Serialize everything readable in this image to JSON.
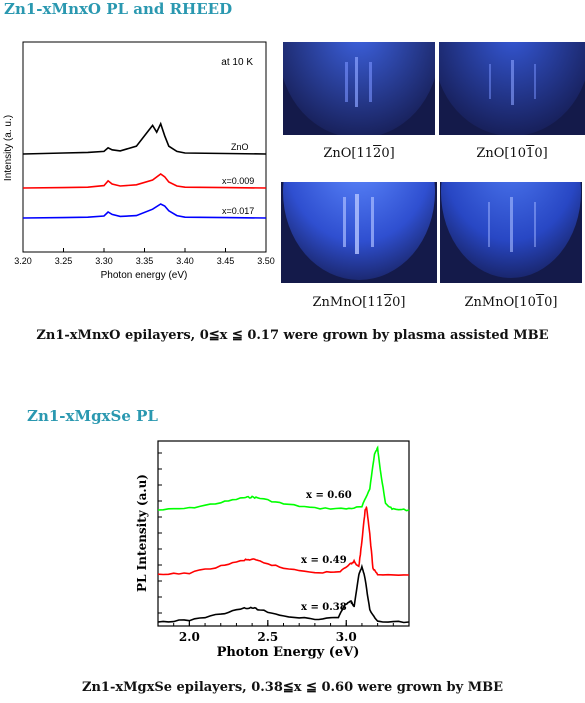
{
  "section1": {
    "title": "Zn1-xMnxO PL and RHEED",
    "caption": "Zn1-xMnxO epilayers, 0≦x ≦ 0.17 were grown by plasma assisted MBE"
  },
  "rheed": [
    {
      "label": "ZnO[11",
      "bar": "2",
      "tail": "0]"
    },
    {
      "label": "ZnO[10",
      "bar": "1",
      "tail": "0]"
    },
    {
      "label": "ZnMnO[11",
      "bar": "2",
      "tail": "0]"
    },
    {
      "label": "ZnMnO[10",
      "bar": "1",
      "tail": "0]"
    }
  ],
  "section2": {
    "title": "Zn1-xMgxSe PL",
    "caption": "Zn1-xMgxSe epilayers, 0.38≦x ≦ 0.60 were grown by MBE"
  },
  "chart_data": [
    {
      "type": "line",
      "annotation": "at 10 K",
      "xlabel": "Photon energy (eV)",
      "ylabel": "Intensity (a. u.)",
      "xlim": [
        3.2,
        3.5
      ],
      "xticks": [
        "3.20",
        "3.25",
        "3.30",
        "3.35",
        "3.40",
        "3.45",
        "3.50"
      ],
      "colors": [
        "#000000",
        "#ff0000",
        "#0000ff"
      ],
      "series": [
        {
          "name": "ZnO",
          "x": [
            3.2,
            3.25,
            3.28,
            3.3,
            3.305,
            3.31,
            3.32,
            3.34,
            3.355,
            3.36,
            3.365,
            3.37,
            3.375,
            3.38,
            3.39,
            3.4,
            3.45,
            3.5
          ],
          "y": [
            0,
            0.02,
            0.03,
            0.05,
            0.12,
            0.08,
            0.06,
            0.15,
            0.45,
            0.55,
            0.42,
            0.58,
            0.35,
            0.15,
            0.05,
            0.02,
            0.01,
            0
          ]
        },
        {
          "name": "x=0.009",
          "x": [
            3.2,
            3.25,
            3.28,
            3.3,
            3.305,
            3.31,
            3.32,
            3.34,
            3.36,
            3.37,
            3.375,
            3.38,
            3.39,
            3.4,
            3.45,
            3.5
          ],
          "y": [
            0,
            0.01,
            0.02,
            0.06,
            0.18,
            0.1,
            0.05,
            0.08,
            0.2,
            0.35,
            0.28,
            0.15,
            0.05,
            0.02,
            0.01,
            0
          ]
        },
        {
          "name": "x=0.017",
          "x": [
            3.2,
            3.25,
            3.28,
            3.3,
            3.305,
            3.31,
            3.32,
            3.34,
            3.36,
            3.37,
            3.375,
            3.38,
            3.39,
            3.4,
            3.45,
            3.5
          ],
          "y": [
            0,
            0.01,
            0.02,
            0.05,
            0.15,
            0.09,
            0.04,
            0.06,
            0.22,
            0.35,
            0.3,
            0.18,
            0.06,
            0.02,
            0.01,
            0
          ]
        }
      ]
    },
    {
      "type": "line",
      "xlabel": "Photon Energy (eV)",
      "ylabel": "PL Intensity (a.u)",
      "xlim": [
        1.8,
        3.4
      ],
      "xticks": [
        "2.0",
        "2.5",
        "3.0"
      ],
      "colors": [
        "#00ff00",
        "#ff0000",
        "#000000"
      ],
      "series": [
        {
          "name": "x = 0.60",
          "x": [
            1.8,
            2.0,
            2.2,
            2.35,
            2.4,
            2.45,
            2.6,
            2.8,
            3.0,
            3.1,
            3.15,
            3.18,
            3.2,
            3.22,
            3.25,
            3.3,
            3.4
          ],
          "y": [
            0,
            0.03,
            0.12,
            0.2,
            0.21,
            0.19,
            0.1,
            0.03,
            0.02,
            0.05,
            0.35,
            0.9,
            1.0,
            0.6,
            0.1,
            0.01,
            0
          ]
        },
        {
          "name": "x = 0.49",
          "x": [
            1.8,
            2.0,
            2.2,
            2.35,
            2.4,
            2.45,
            2.6,
            2.8,
            2.95,
            3.02,
            3.05,
            3.08,
            3.1,
            3.12,
            3.13,
            3.15,
            3.17,
            3.2,
            3.4
          ],
          "y": [
            0,
            0.03,
            0.13,
            0.22,
            0.23,
            0.2,
            0.1,
            0.04,
            0.04,
            0.15,
            0.2,
            0.12,
            0.5,
            0.95,
            1.0,
            0.6,
            0.1,
            0.01,
            0
          ]
        },
        {
          "name": "x = 0.38",
          "x": [
            1.8,
            2.0,
            2.2,
            2.35,
            2.4,
            2.45,
            2.6,
            2.8,
            2.95,
            3.0,
            3.03,
            3.05,
            3.08,
            3.1,
            3.12,
            3.15,
            3.2,
            3.4
          ],
          "y": [
            0,
            0.03,
            0.13,
            0.22,
            0.23,
            0.2,
            0.1,
            0.04,
            0.08,
            0.3,
            0.33,
            0.25,
            0.75,
            0.9,
            0.7,
            0.2,
            0.01,
            0
          ]
        }
      ]
    }
  ]
}
